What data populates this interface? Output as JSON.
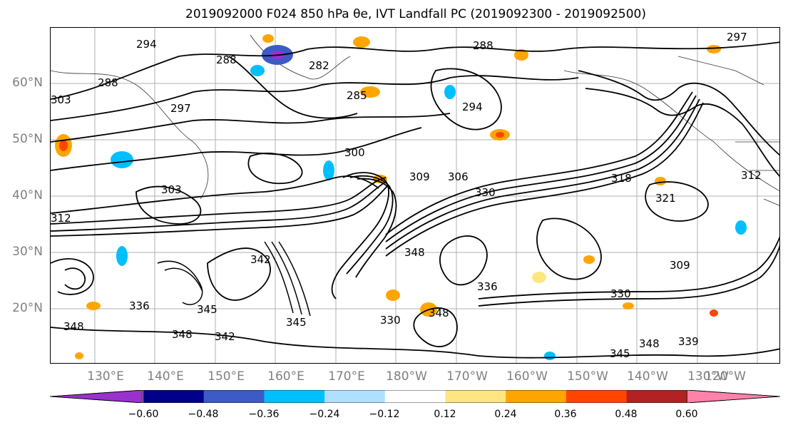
{
  "title": "2019092000 F024 850 hPa θe, IVT Landfall PC (2019092300 - 2019092500)",
  "latitude_labels": [
    "60°N",
    "50°N",
    "40°N",
    "30°N",
    "20°N"
  ],
  "longitude_labels": [
    "130°E",
    "140°E",
    "150°E",
    "160°E",
    "170°E",
    "180°W",
    "170°W",
    "160°W",
    "150°W",
    "140°W",
    "130°W",
    "120°W"
  ],
  "colorbar": {
    "ticks": [
      "−0.60",
      "−0.48",
      "−0.36",
      "−0.24",
      "−0.12",
      "0.12",
      "0.24",
      "0.36",
      "0.48",
      "0.60"
    ],
    "colors": [
      "#9932cc",
      "#00008b",
      "#3c5ac8",
      "#00bfff",
      "#b0e0ff",
      "#ffffff",
      "#ffe680",
      "#ffa500",
      "#ff4500",
      "#b22222",
      "#ff82aa"
    ]
  },
  "contour_labels": [
    {
      "text": "294"
    },
    {
      "text": "288"
    },
    {
      "text": "282"
    },
    {
      "text": "288"
    },
    {
      "text": "285"
    },
    {
      "text": "294"
    },
    {
      "text": "297"
    },
    {
      "text": "288"
    },
    {
      "text": "303"
    },
    {
      "text": "300"
    },
    {
      "text": "309"
    },
    {
      "text": "306"
    },
    {
      "text": "303"
    },
    {
      "text": "318"
    },
    {
      "text": "321"
    },
    {
      "text": "312"
    },
    {
      "text": "330"
    },
    {
      "text": "309"
    },
    {
      "text": "348"
    },
    {
      "text": "342"
    },
    {
      "text": "336"
    },
    {
      "text": "345"
    },
    {
      "text": "348"
    },
    {
      "text": "342"
    },
    {
      "text": "345"
    },
    {
      "text": "330"
    },
    {
      "text": "348"
    },
    {
      "text": "345"
    },
    {
      "text": "348"
    },
    {
      "text": "339"
    },
    {
      "text": "330"
    },
    {
      "text": "336"
    },
    {
      "text": "297"
    },
    {
      "text": "312"
    },
    {
      "text": "348"
    }
  ]
}
